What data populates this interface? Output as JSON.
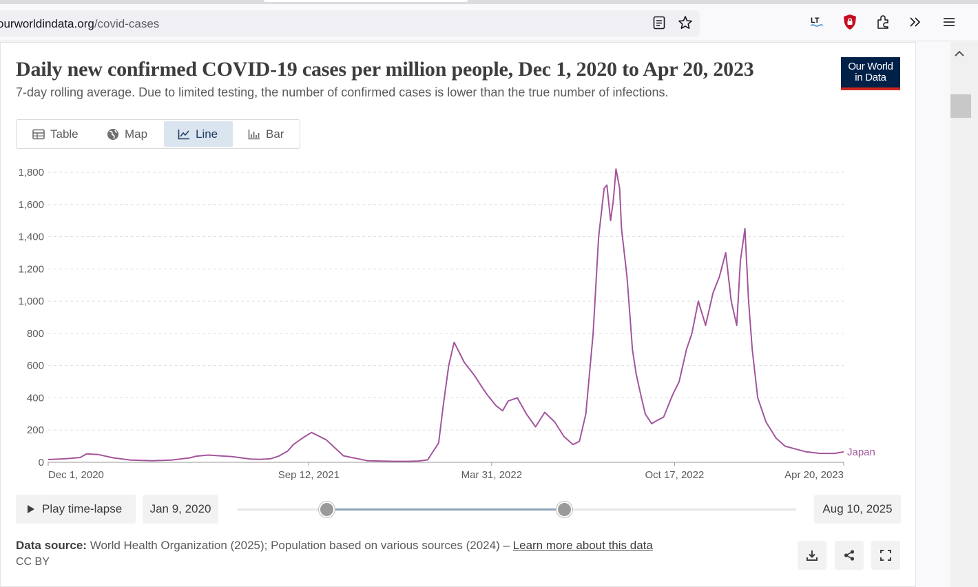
{
  "browser": {
    "url_domain": "ourworldindata.org",
    "url_path": "/covid-cases"
  },
  "header": {
    "title": "Daily new confirmed COVID-19 cases per million people, Dec 1, 2020 to Apr 20, 2023",
    "subtitle": "7-day rolling average. Due to limited testing, the number of confirmed cases is lower than the true number of infections.",
    "logo_line1": "Our World",
    "logo_line2": "in Data"
  },
  "tabs": [
    {
      "label": "Table",
      "icon": "table-icon"
    },
    {
      "label": "Map",
      "icon": "globe-icon"
    },
    {
      "label": "Line",
      "icon": "line-chart-icon",
      "active": true
    },
    {
      "label": "Bar",
      "icon": "bar-chart-icon"
    }
  ],
  "timeline": {
    "play_label": "Play time-lapse",
    "start_label": "Jan 9, 2020",
    "end_label": "Aug 10, 2025"
  },
  "footer": {
    "source_label": "Data source:",
    "source_text": "World Health Organization (2025); Population based on various sources (2024) –",
    "learn_more": "Learn more about this data",
    "license": "CC BY"
  },
  "colors": {
    "series": "#a2559c",
    "logo_bg": "#002147",
    "logo_accent": "#ce261e",
    "active_tab": "#dbe5f0"
  },
  "chart_data": {
    "type": "line",
    "title": "Daily new confirmed COVID-19 cases per million people, Dec 1, 2020 to Apr 20, 2023",
    "xlabel": "",
    "ylabel": "",
    "ylim": [
      0,
      1800
    ],
    "yticks": [
      0,
      200,
      400,
      600,
      800,
      1000,
      1200,
      1400,
      1600,
      1800
    ],
    "ytick_labels": [
      "0",
      "200",
      "400",
      "600",
      "800",
      "1,000",
      "1,200",
      "1,400",
      "1,600",
      "1,800"
    ],
    "xlim": [
      "2020-12-01",
      "2023-04-20"
    ],
    "xticks": [
      "2020-12-01",
      "2021-09-12",
      "2022-03-31",
      "2022-10-17",
      "2023-04-20"
    ],
    "xtick_labels": [
      "Dec 1, 2020",
      "Sep 12, 2021",
      "Mar 31, 2022",
      "Oct 17, 2022",
      "Apr 20, 2023"
    ],
    "grid": "horizontal dashed",
    "series": [
      {
        "name": "Japan",
        "x": [
          "2020-12-01",
          "2020-12-20",
          "2021-01-05",
          "2021-01-12",
          "2021-01-25",
          "2021-02-10",
          "2021-03-01",
          "2021-03-25",
          "2021-04-15",
          "2021-05-05",
          "2021-05-12",
          "2021-05-25",
          "2021-06-20",
          "2021-07-10",
          "2021-07-20",
          "2021-08-01",
          "2021-08-10",
          "2021-08-20",
          "2021-08-26",
          "2021-09-05",
          "2021-09-15",
          "2021-10-01",
          "2021-10-20",
          "2021-11-15",
          "2021-12-15",
          "2021-12-30",
          "2022-01-10",
          "2022-01-20",
          "2022-02-01",
          "2022-02-06",
          "2022-02-12",
          "2022-02-18",
          "2022-03-01",
          "2022-03-12",
          "2022-03-20",
          "2022-03-26",
          "2022-04-05",
          "2022-04-12",
          "2022-04-18",
          "2022-04-28",
          "2022-05-08",
          "2022-05-18",
          "2022-05-28",
          "2022-06-08",
          "2022-06-18",
          "2022-06-28",
          "2022-07-05",
          "2022-07-12",
          "2022-07-20",
          "2022-07-26",
          "2022-08-01",
          "2022-08-04",
          "2022-08-08",
          "2022-08-11",
          "2022-08-14",
          "2022-08-18",
          "2022-08-20",
          "2022-08-26",
          "2022-09-01",
          "2022-09-05",
          "2022-09-10",
          "2022-09-15",
          "2022-09-22",
          "2022-09-28",
          "2022-10-05",
          "2022-10-15",
          "2022-10-22",
          "2022-10-30",
          "2022-11-05",
          "2022-11-12",
          "2022-11-20",
          "2022-11-28",
          "2022-12-05",
          "2022-12-12",
          "2022-12-18",
          "2022-12-24",
          "2022-12-28",
          "2023-01-02",
          "2023-01-06",
          "2023-01-10",
          "2023-01-16",
          "2023-01-25",
          "2023-02-05",
          "2023-02-15",
          "2023-02-28",
          "2023-03-10",
          "2023-03-25",
          "2023-04-10",
          "2023-04-20"
        ],
        "y": [
          17,
          22,
          30,
          52,
          48,
          28,
          14,
          10,
          14,
          28,
          38,
          45,
          35,
          20,
          18,
          22,
          38,
          70,
          110,
          150,
          185,
          140,
          40,
          10,
          6,
          6,
          8,
          15,
          120,
          350,
          600,
          745,
          620,
          540,
          470,
          420,
          350,
          320,
          380,
          400,
          300,
          220,
          310,
          250,
          160,
          110,
          130,
          300,
          800,
          1400,
          1700,
          1720,
          1500,
          1620,
          1820,
          1700,
          1450,
          1150,
          700,
          550,
          420,
          300,
          240,
          260,
          280,
          420,
          500,
          700,
          800,
          1000,
          850,
          1050,
          1150,
          1300,
          1000,
          850,
          1250,
          1450,
          1000,
          700,
          400,
          250,
          150,
          100,
          80,
          65,
          55,
          55,
          65
        ]
      }
    ]
  }
}
